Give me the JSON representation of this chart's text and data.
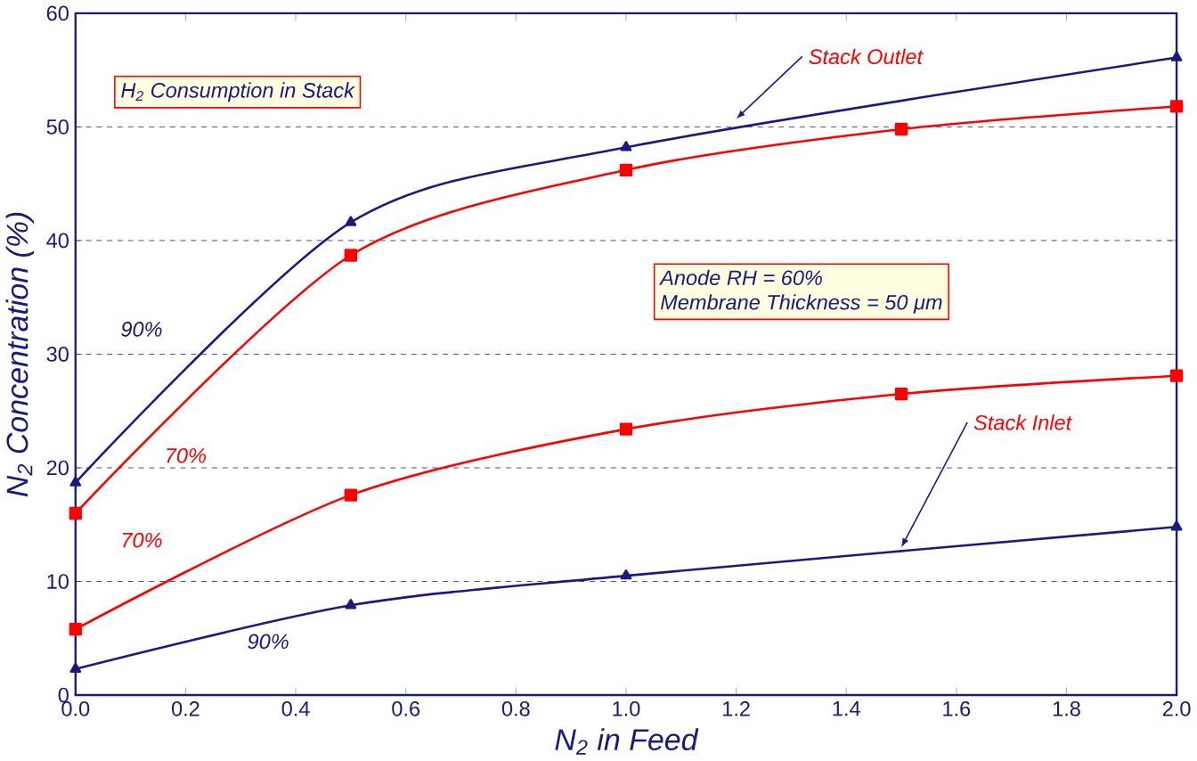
{
  "chart_data": {
    "type": "line",
    "xlabel": "N$_{2}$ in Feed",
    "ylabel": "N$_{2}$ Concentration (%)",
    "xlim": [
      0,
      2
    ],
    "xticks": [
      {
        "value": 0,
        "label": "0.0"
      },
      {
        "value": 0.2,
        "label": "0.2"
      },
      {
        "value": 0.4,
        "label": "0.4"
      },
      {
        "value": 0.6,
        "label": "0.6"
      },
      {
        "value": 0.8,
        "label": "0.8"
      },
      {
        "value": 1,
        "label": "1.0"
      },
      {
        "value": 1.2,
        "label": "1.2"
      },
      {
        "value": 1.4,
        "label": "1.4"
      },
      {
        "value": 1.6,
        "label": "1.6"
      },
      {
        "value": 1.8,
        "label": "1.8"
      },
      {
        "value": 2,
        "label": "2.0"
      }
    ],
    "ylim": [
      0,
      60
    ],
    "yticks": [
      0,
      10,
      20,
      30,
      40,
      50,
      60
    ],
    "grid": "y",
    "line_style": "solid",
    "series": [
      {
        "name": "90%",
        "color": "#1a1a80",
        "marker": "triangle",
        "x": [
          0,
          0.5,
          1,
          2
        ],
        "values": [
          18.7,
          41.6,
          48.2,
          56.1
        ]
      },
      {
        "name": "70%",
        "color": "#ff0000",
        "marker": "square",
        "x": [
          0,
          0.5,
          1,
          1.5,
          2
        ],
        "values": [
          16.0,
          38.7,
          46.2,
          49.8,
          51.8
        ]
      },
      {
        "name": "70%",
        "color": "#ff0000",
        "marker": "square",
        "x": [
          0,
          0.5,
          1,
          1.5,
          2
        ],
        "values": [
          5.8,
          17.6,
          23.4,
          26.5,
          28.1
        ]
      },
      {
        "name": "90%",
        "color": "#1a1a80",
        "marker": "triangle",
        "x": [
          0,
          0.5,
          1,
          2
        ],
        "values": [
          2.3,
          7.9,
          10.5,
          14.8
        ]
      }
    ],
    "annotations": [
      {
        "text": "Stack Outlet",
        "x": 1.2,
        "y": 50.7
      },
      {
        "text": "Stack Inlet",
        "x": 1.5,
        "y": 13.0
      },
      "H$_{2}$ Consumption in Stack",
      "Anode RH = 60%",
      "Membrane Thickness = 50 μm"
    ]
  }
}
